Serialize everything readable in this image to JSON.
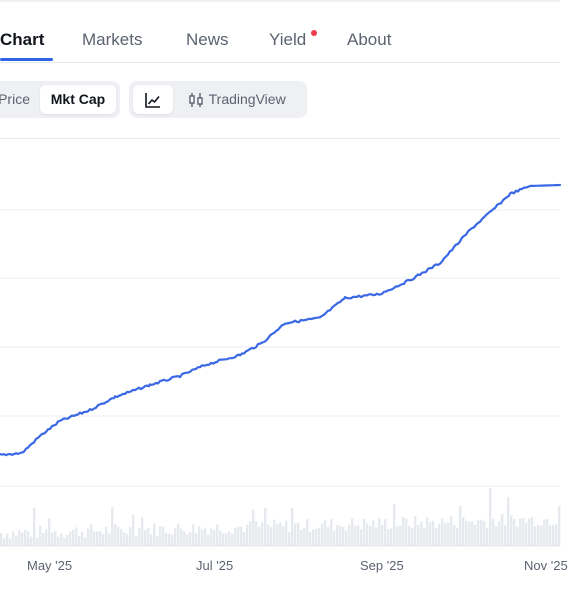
{
  "tabs": {
    "chart": "Chart",
    "markets": "Markets",
    "news": "News",
    "yield": "Yield",
    "about": "About"
  },
  "toolbar": {
    "price_label": "Price",
    "mktcap_label": "Mkt Cap",
    "tradingview_label": "TradingView"
  },
  "colors": {
    "accent": "#2f63e6",
    "line": "#3b68e5",
    "notification": "#ef3b4a",
    "volume": "#e6e9ee"
  },
  "icons": {
    "line_chart": "line-chart-icon",
    "candlestick": "candlestick-icon"
  },
  "chart_data": {
    "type": "line",
    "x_tick_labels": [
      "May '25",
      "Jul '25",
      "Sep '25",
      "Nov '25"
    ],
    "grid": true,
    "series_shape": "steady rise from April to a plateau in November, with a volume histogram along the bottom"
  }
}
